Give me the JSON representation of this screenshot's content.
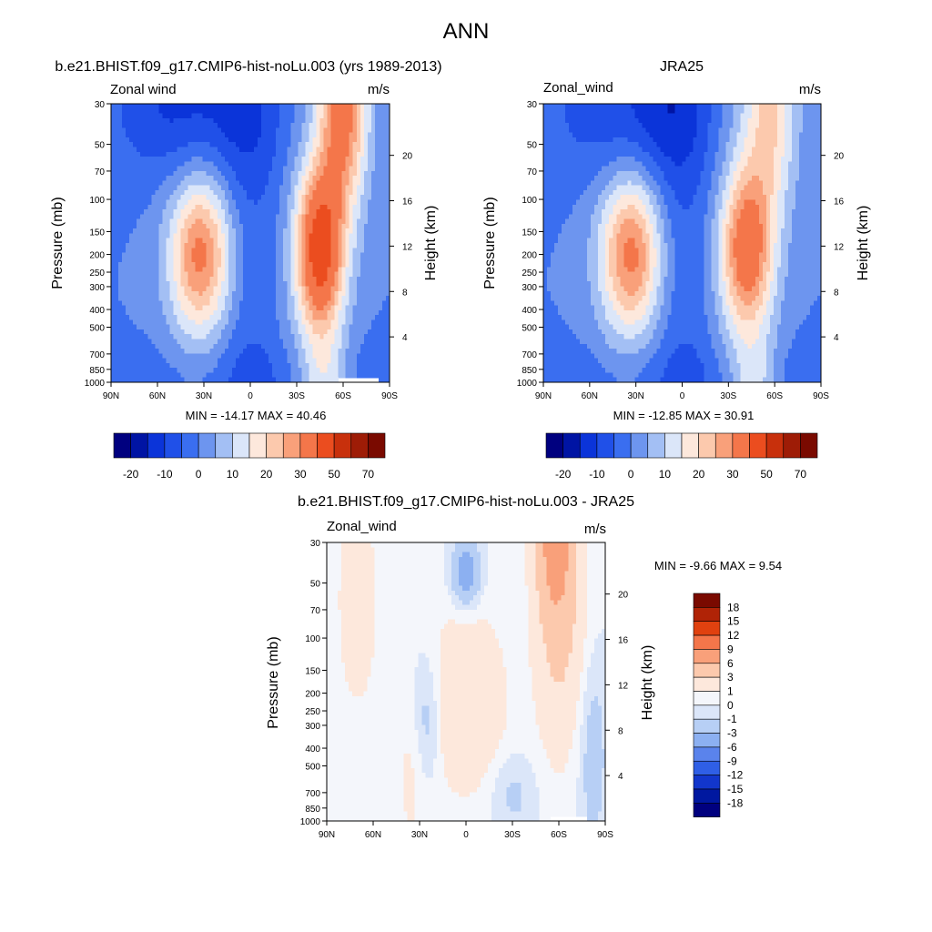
{
  "figure_title": "ANN",
  "panels": {
    "model": {
      "title": "b.e21.BHIST.f09_g17.CMIP6-hist-noLu.003 (yrs 1989-2013)",
      "left_label": "Zonal wind",
      "right_label": "m/s",
      "ylabel": "Pressure (mb)",
      "ylabel_right": "Height (km)",
      "minmax": "MIN = -14.17  MAX =  40.46"
    },
    "obs": {
      "title": "JRA25",
      "left_label": "Zonal_wind",
      "right_label": "m/s",
      "ylabel": "Pressure (mb)",
      "ylabel_right": "Height (km)",
      "minmax": "MIN = -12.85  MAX =  30.91"
    },
    "diff": {
      "title": "b.e21.BHIST.f09_g17.CMIP6-hist-noLu.003 - JRA25",
      "left_label": "Zonal_wind",
      "right_label": "m/s",
      "ylabel": "Pressure (mb)",
      "ylabel_right": "Height (km)",
      "minmax": "MIN =  -9.66  MAX =   9.54"
    }
  },
  "chart_data": [
    {
      "type": "heatmap",
      "id": "model",
      "title": "b.e21.BHIST.f09_g17.CMIP6-hist-noLu.003 (yrs 1989-2013)",
      "field": "Zonal wind",
      "units": "m/s",
      "x_ticks": [
        "90N",
        "60N",
        "30N",
        "0",
        "30S",
        "60S",
        "90S"
      ],
      "x_values": [
        90,
        60,
        30,
        0,
        -30,
        -60,
        -90
      ],
      "y_ticks": [
        30,
        50,
        70,
        100,
        150,
        200,
        250,
        300,
        400,
        500,
        700,
        850,
        1000
      ],
      "ylim_mb": [
        1000,
        30
      ],
      "height_ticks_km": [
        4,
        8,
        12,
        16,
        20
      ],
      "min": -14.17,
      "max": 40.46,
      "features": [
        {
          "kind": "westerly_jet",
          "lat": 32,
          "p": 200,
          "peak": 25
        },
        {
          "kind": "westerly_jet",
          "lat": -45,
          "p": 200,
          "peak": 40
        },
        {
          "kind": "stratospheric_westerly",
          "lat": -60,
          "p": 30,
          "value": 40
        },
        {
          "kind": "tropical_easterly",
          "lat": 0,
          "value": -5
        },
        {
          "kind": "polar_stratospheric_easterly",
          "lat": 45,
          "p": 30,
          "value": -10
        }
      ]
    },
    {
      "type": "heatmap",
      "id": "obs",
      "title": "JRA25",
      "field": "Zonal_wind",
      "units": "m/s",
      "x_ticks": [
        "90N",
        "60N",
        "30N",
        "0",
        "30S",
        "60S",
        "90S"
      ],
      "x_values": [
        90,
        60,
        30,
        0,
        -30,
        -60,
        -90
      ],
      "y_ticks": [
        30,
        50,
        70,
        100,
        150,
        200,
        250,
        300,
        400,
        500,
        700,
        850,
        1000
      ],
      "ylim_mb": [
        1000,
        30
      ],
      "height_ticks_km": [
        4,
        8,
        12,
        16,
        20
      ],
      "min": -12.85,
      "max": 30.91,
      "features": [
        {
          "kind": "westerly_jet",
          "lat": 33,
          "p": 200,
          "peak": 25
        },
        {
          "kind": "westerly_jet",
          "lat": -42,
          "p": 200,
          "peak": 30
        },
        {
          "kind": "stratospheric_westerly",
          "lat": -60,
          "p": 30,
          "value": 20
        },
        {
          "kind": "tropical_easterly",
          "lat": 0,
          "value": -5
        }
      ]
    },
    {
      "type": "heatmap",
      "id": "diff",
      "title": "b.e21.BHIST.f09_g17.CMIP6-hist-noLu.003 - JRA25",
      "field": "Zonal_wind",
      "units": "m/s",
      "x_ticks": [
        "90N",
        "60N",
        "30N",
        "0",
        "30S",
        "60S",
        "90S"
      ],
      "x_values": [
        90,
        60,
        30,
        0,
        -30,
        -60,
        -90
      ],
      "y_ticks": [
        30,
        50,
        70,
        100,
        150,
        200,
        250,
        300,
        400,
        500,
        700,
        850,
        1000
      ],
      "ylim_mb": [
        1000,
        30
      ],
      "height_ticks_km": [
        4,
        8,
        12,
        16,
        20
      ],
      "min": -9.66,
      "max": 9.54,
      "features": [
        {
          "kind": "positive_bias",
          "lat": -60,
          "p": 60,
          "value": 9
        },
        {
          "kind": "negative_bias",
          "lat": 0,
          "p": 60,
          "value": -5
        },
        {
          "kind": "positive_bias",
          "lat": 0,
          "p": 200,
          "value": 4
        }
      ]
    }
  ],
  "colorbars": {
    "abs": {
      "labels": [
        "-20",
        "-10",
        "0",
        "10",
        "20",
        "30",
        "50",
        "70"
      ],
      "colors": [
        "#00007f",
        "#0014a4",
        "#0b34d9",
        "#2050e8",
        "#3a6ef0",
        "#6d95ef",
        "#a3bff4",
        "#dbe6f9",
        "#fde8dc",
        "#fcc9ad",
        "#f9a07a",
        "#f4764a",
        "#eb4d1f",
        "#c8300c",
        "#9e1c06",
        "#7a0a00"
      ]
    },
    "diff": {
      "labels": [
        "18",
        "15",
        "12",
        "9",
        "6",
        "3",
        "1",
        "0",
        "-1",
        "-3",
        "-6",
        "-9",
        "-12",
        "-15",
        "-18"
      ],
      "colors": [
        "#7a0a00",
        "#b02306",
        "#e0410f",
        "#f4764a",
        "#f9a07a",
        "#fcc9ad",
        "#fde8dc",
        "#f4f6fb",
        "#dbe6f9",
        "#b7cff5",
        "#8cb0f1",
        "#5a83ec",
        "#2f5fe6",
        "#1236cc",
        "#0018a0",
        "#00007f"
      ]
    }
  }
}
